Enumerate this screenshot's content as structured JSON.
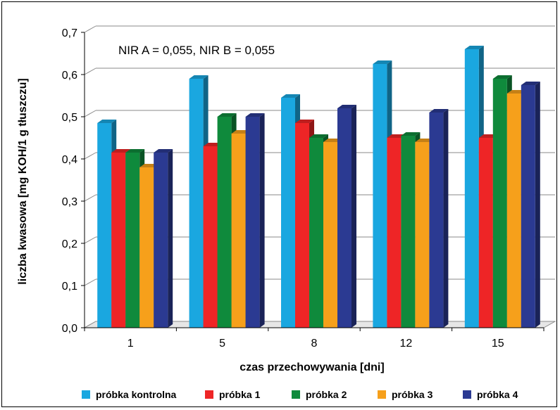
{
  "chart_data": {
    "type": "bar",
    "ylabel": "liczba kwasowa [mg KOH/1 g tłuszczu]",
    "xlabel": "czas przechowywania [dni]",
    "annotation": "NIR A = 0,055,   NIR B = 0,055",
    "categories": [
      "1",
      "5",
      "8",
      "12",
      "15"
    ],
    "ylim": [
      0,
      0.7
    ],
    "yticks": [
      "0,0",
      "0,1",
      "0,2",
      "0,3",
      "0,4",
      "0,5",
      "0,6",
      "0,7"
    ],
    "grid": true,
    "legend_position": "bottom",
    "series": [
      {
        "name": "próbka kontrolna",
        "color": "#1aa7e0",
        "values": [
          0.485,
          0.59,
          0.545,
          0.625,
          0.66
        ]
      },
      {
        "name": "próbka 1",
        "color": "#ee2526",
        "values": [
          0.415,
          0.43,
          0.485,
          0.45,
          0.45
        ]
      },
      {
        "name": "próbka 2",
        "color": "#0f8a3c",
        "values": [
          0.415,
          0.5,
          0.45,
          0.455,
          0.59
        ]
      },
      {
        "name": "próbka 3",
        "color": "#f6a01b",
        "values": [
          0.38,
          0.46,
          0.44,
          0.44,
          0.555
        ]
      },
      {
        "name": "próbka 4",
        "color": "#2b3a92",
        "values": [
          0.415,
          0.5,
          0.52,
          0.51,
          0.575
        ]
      }
    ]
  }
}
